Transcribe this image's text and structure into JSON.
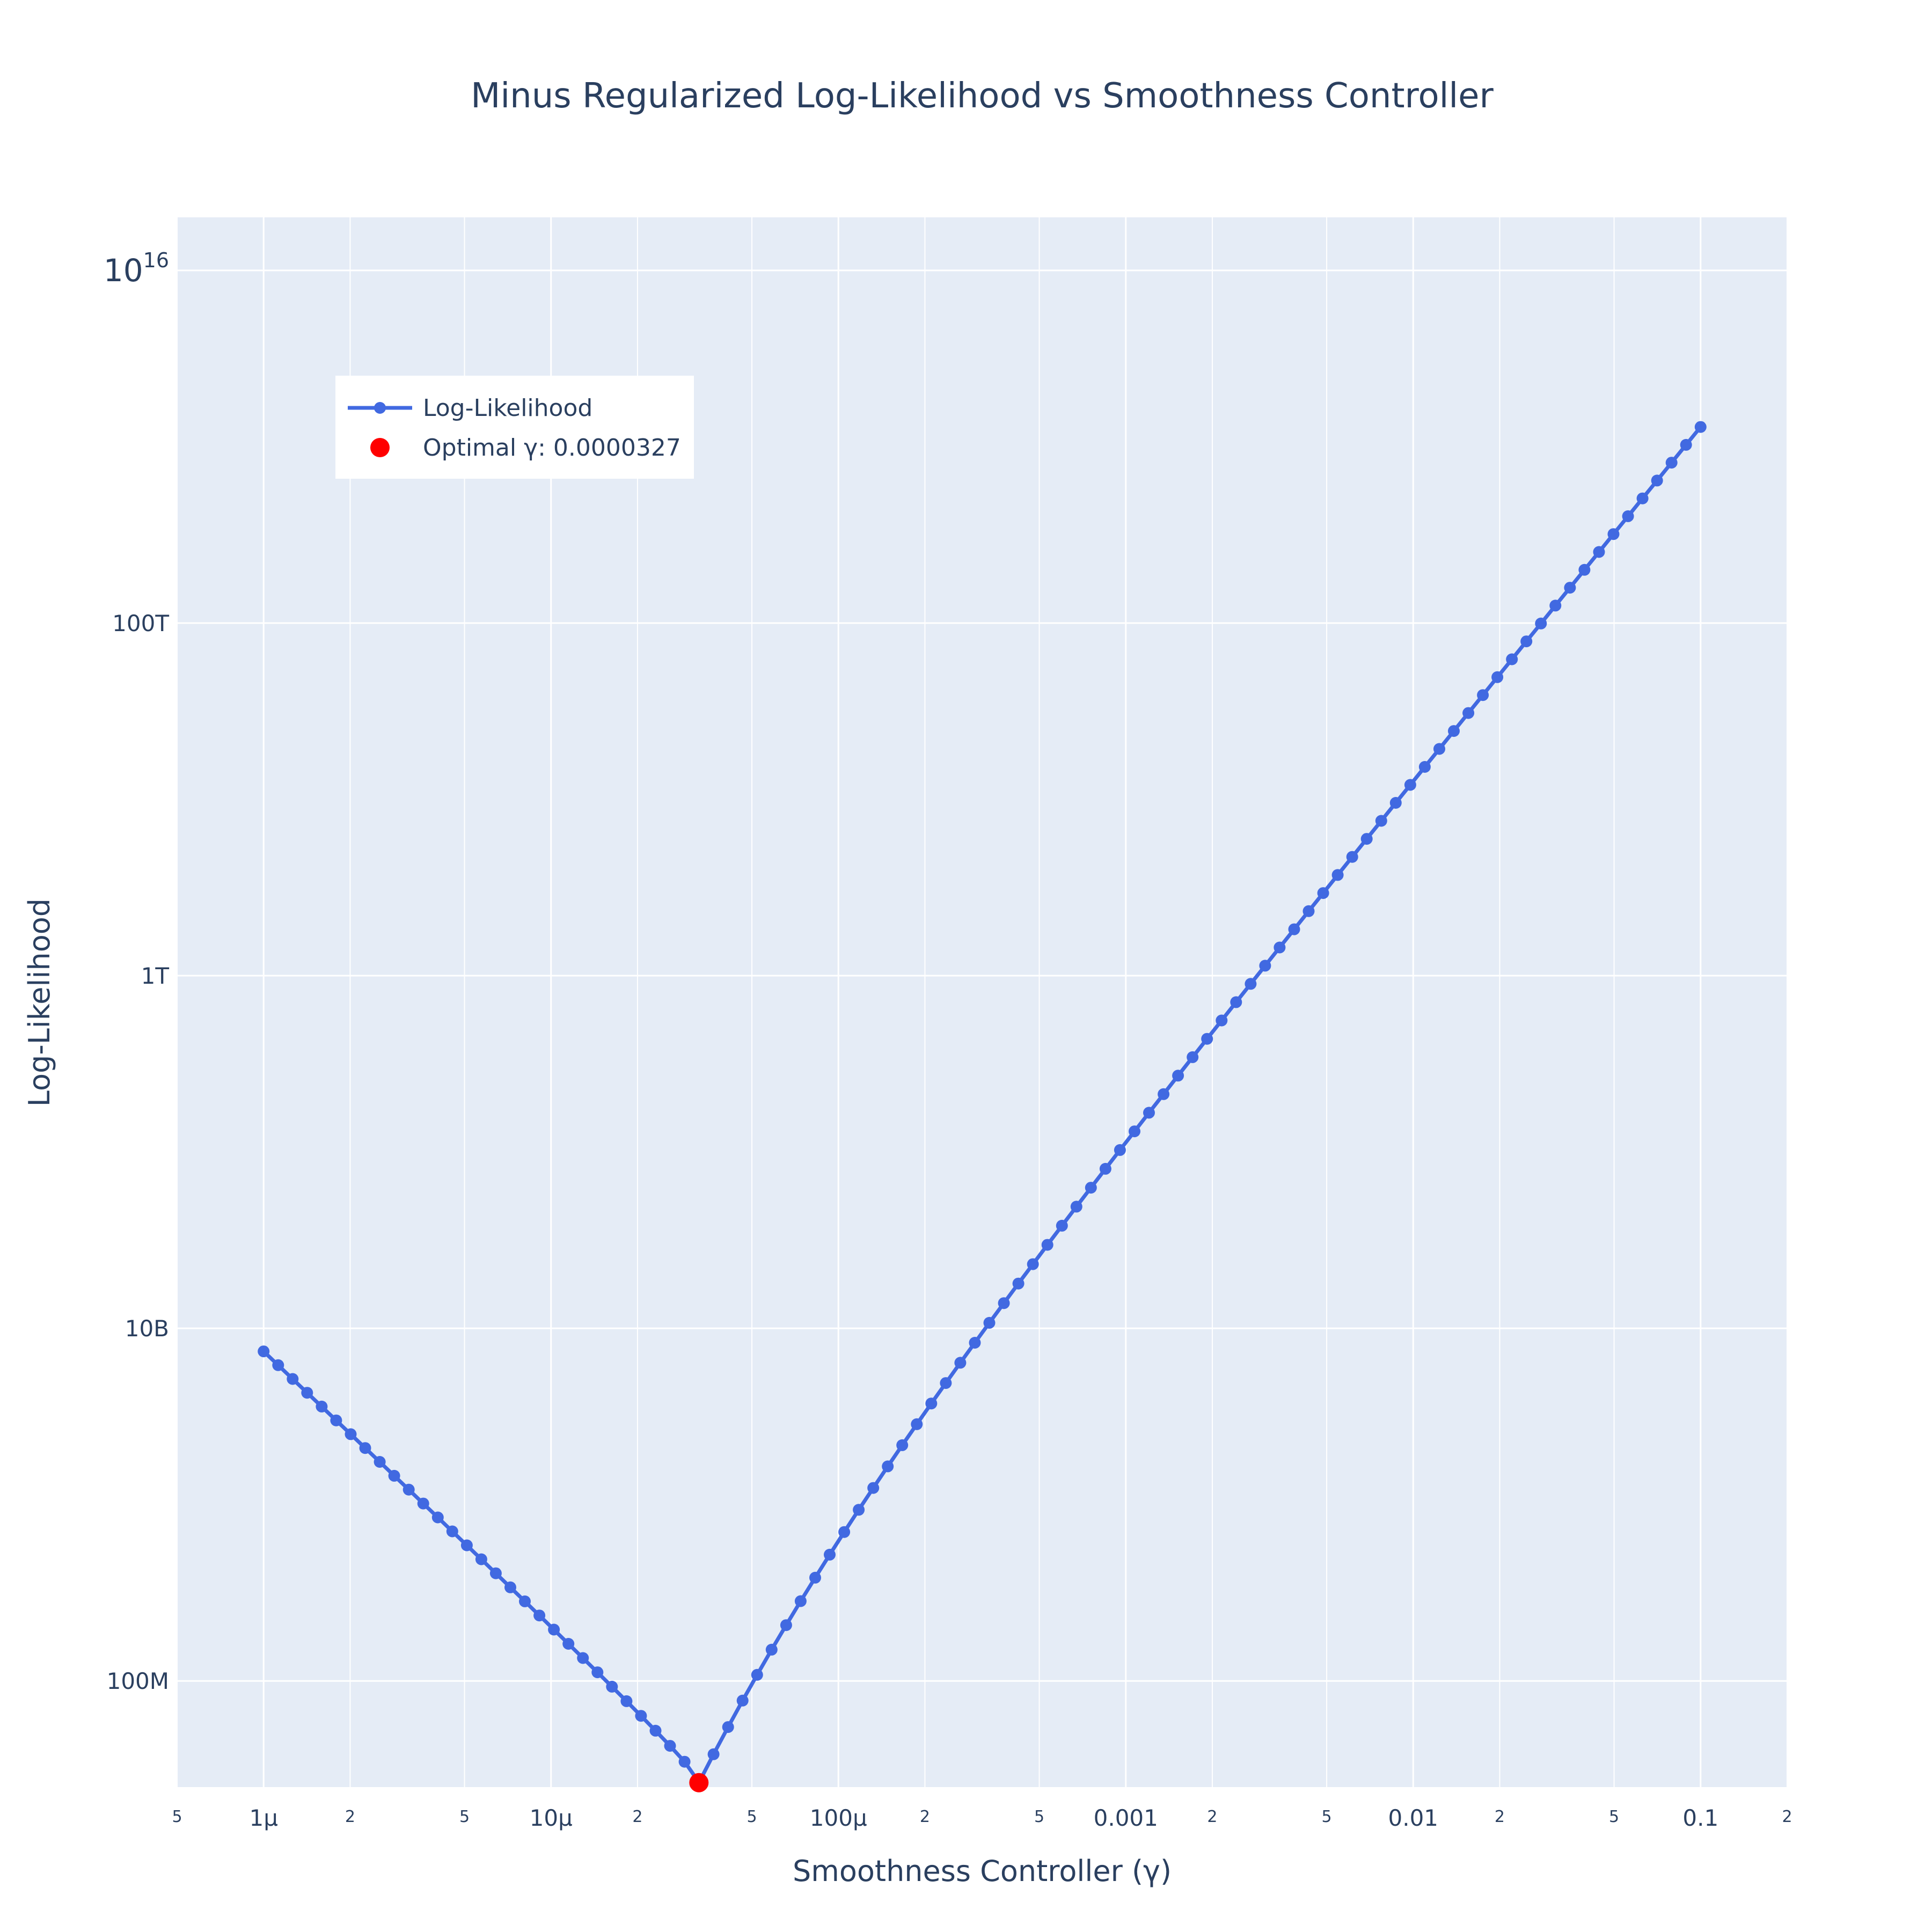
{
  "colors": {
    "plot_bg": "#e5ecf6",
    "grid": "#ffffff",
    "line": "#4169e1",
    "optimal": "#ff0000",
    "text": "#2a3f5f"
  },
  "chart_data": {
    "type": "line",
    "title": "Minus Regularized Log-Likelihood vs Smoothness Controller",
    "xlabel": "Smoothness Controller (γ)",
    "ylabel": "Log-Likelihood",
    "x_scale": "log",
    "y_scale": "log",
    "xlim": [
      5e-07,
      0.2
    ],
    "ylim": [
      25000000.0,
      2e+16
    ],
    "x_major_ticks": [
      {
        "value": 1e-06,
        "label": "1μ"
      },
      {
        "value": 1e-05,
        "label": "10μ"
      },
      {
        "value": 0.0001,
        "label": "100μ"
      },
      {
        "value": 0.001,
        "label": "0.001"
      },
      {
        "value": 0.01,
        "label": "0.01"
      },
      {
        "value": 0.1,
        "label": "0.1"
      }
    ],
    "x_minor_ticks": [
      {
        "value": 5e-07,
        "label": "5"
      },
      {
        "value": 2e-06,
        "label": "2"
      },
      {
        "value": 5e-06,
        "label": "5"
      },
      {
        "value": 2e-05,
        "label": "2"
      },
      {
        "value": 5e-05,
        "label": "5"
      },
      {
        "value": 0.0002,
        "label": "2"
      },
      {
        "value": 0.0005,
        "label": "5"
      },
      {
        "value": 0.002,
        "label": "2"
      },
      {
        "value": 0.005,
        "label": "5"
      },
      {
        "value": 0.02,
        "label": "2"
      },
      {
        "value": 0.05,
        "label": "5"
      },
      {
        "value": 0.2,
        "label": "2"
      }
    ],
    "y_ticks": [
      {
        "value": 100000000.0,
        "label": "100M"
      },
      {
        "value": 10000000000.0,
        "label": "10B"
      },
      {
        "value": 1000000000000.0,
        "label": "1T"
      },
      {
        "value": 100000000000000.0,
        "label": "100T"
      },
      {
        "value": 1e+16,
        "label": "10",
        "sup": "16"
      }
    ],
    "series": [
      {
        "name": "Log-Likelihood",
        "x_start": 1e-06,
        "x_end": 0.1,
        "n_points": 100,
        "x_min_at": 3.27e-05,
        "y_at_start": 7400000000.0,
        "y_at_min": 26500000.0,
        "left_slope_decades": -1.42,
        "right_far_slope_decades": 2.0,
        "right_steep_slope_decades": 3.2,
        "right_blend_scale_decades": 0.6
      }
    ],
    "optimal_point": {
      "x": 3.27e-05,
      "y": 26500000.0
    },
    "legend": {
      "position": "top-left",
      "entries": [
        {
          "label": "Log-Likelihood",
          "kind": "line-marker"
        },
        {
          "label": "Optimal γ: 0.0000327",
          "kind": "marker"
        }
      ]
    }
  }
}
